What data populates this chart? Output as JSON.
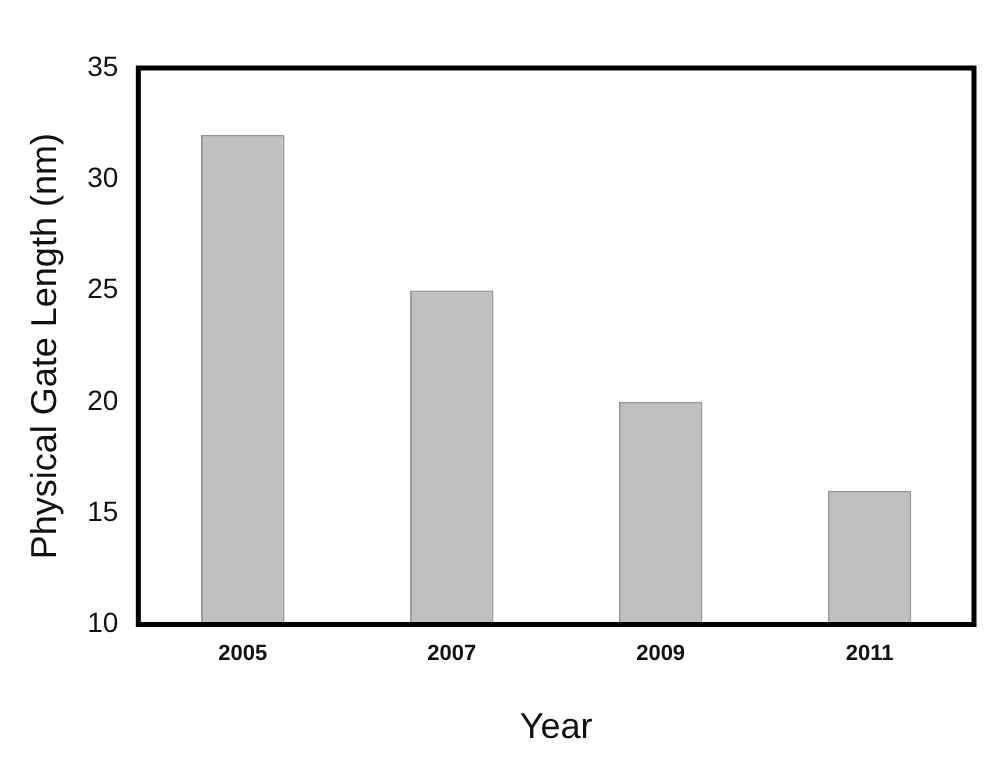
{
  "chart_data": {
    "type": "bar",
    "xlabel": "Year",
    "ylabel": "Physical Gate Length (nm)",
    "categories": [
      "2005",
      "2007",
      "2009",
      "2011"
    ],
    "values": [
      32,
      25,
      20,
      16
    ],
    "color": "#c0c0c0",
    "ylim": [
      10,
      35
    ],
    "yticks": [
      10,
      15,
      20,
      25,
      30,
      35
    ],
    "grid": false,
    "legend": false
  }
}
